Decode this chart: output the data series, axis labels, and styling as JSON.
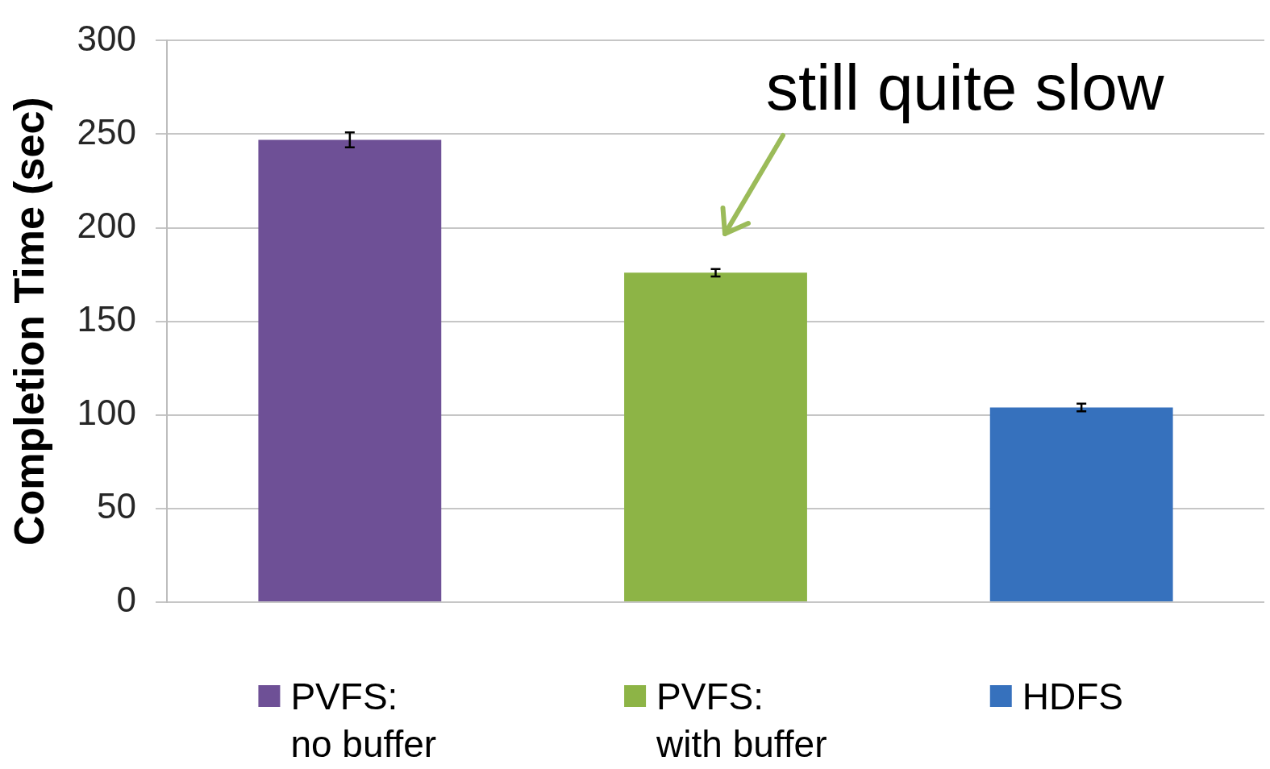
{
  "chart_data": {
    "type": "bar",
    "ylabel": "Completion Time (sec)",
    "annotations": [
      "still quite slow"
    ],
    "categories": [
      null,
      null,
      null
    ],
    "series": [
      {
        "name": "PVFS: no buffer",
        "color": "#6e5096",
        "values": [
          247,
          null,
          null
        ],
        "errors": [
          4,
          null,
          null
        ]
      },
      {
        "name": "PVFS: with buffer",
        "color": "#8db446",
        "values": [
          null,
          176,
          null
        ],
        "errors": [
          null,
          2,
          null
        ]
      },
      {
        "name": "HDFS",
        "color": "#3671bd",
        "values": [
          null,
          null,
          104
        ],
        "errors": [
          null,
          null,
          2
        ]
      }
    ],
    "ylim": [
      0,
      300
    ],
    "yticks": [
      0,
      50,
      100,
      150,
      200,
      250,
      300
    ],
    "grid": "y",
    "legend": "bottom",
    "tick_labels": "y"
  }
}
